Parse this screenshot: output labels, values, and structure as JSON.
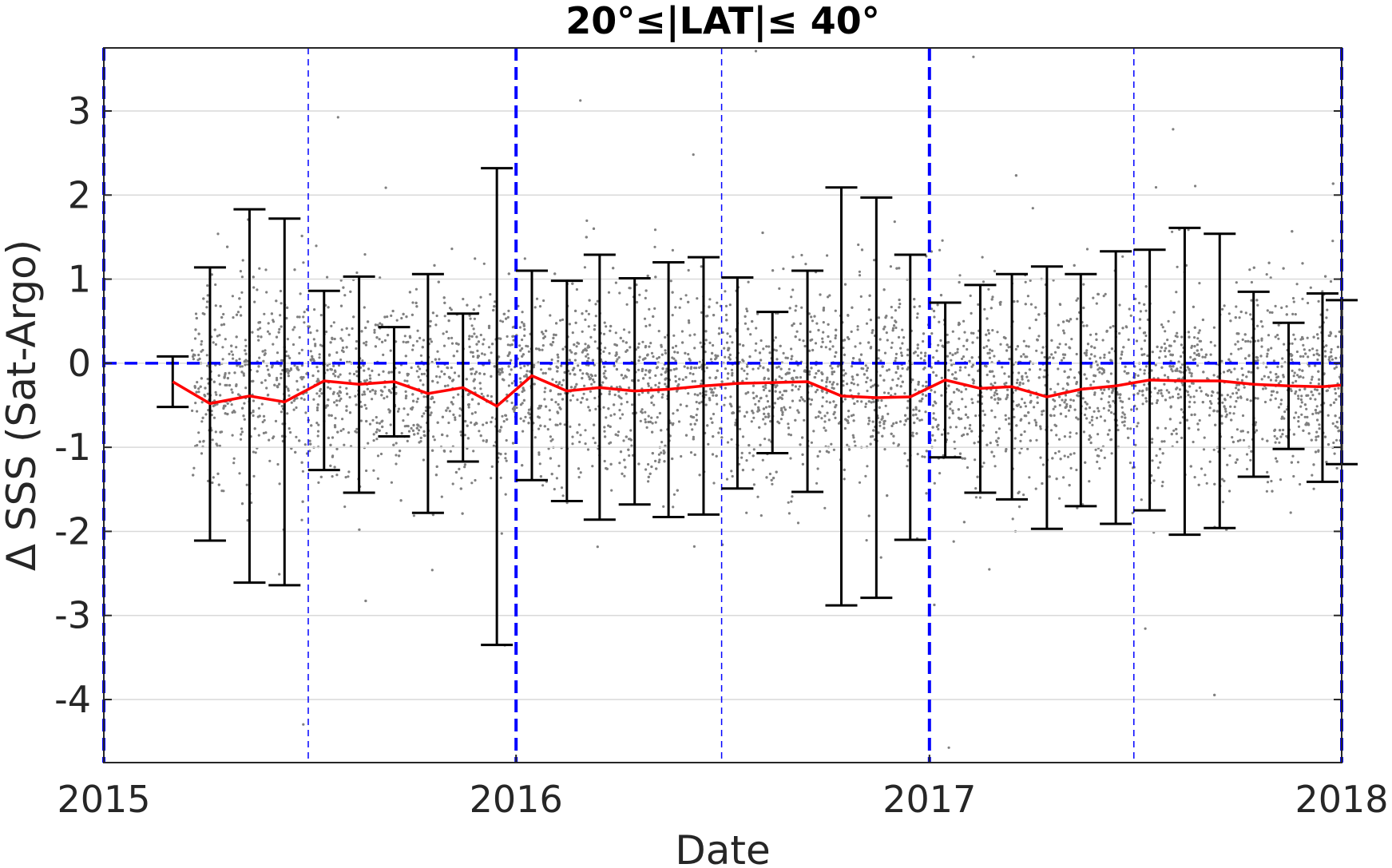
{
  "chart_data": {
    "type": "scatter",
    "title": "20°≤|LAT|≤ 40°",
    "xlabel": "Date",
    "ylabel": "Δ SSS (Sat-Argo)",
    "xlim": [
      "2015-01-01",
      "2018-01-01"
    ],
    "ylim": [
      -4.75,
      3.75
    ],
    "x_ticks": [
      "2015",
      "2016",
      "2017",
      "2018"
    ],
    "y_ticks": [
      3,
      2,
      1,
      0,
      -1,
      -2,
      -3,
      -4
    ],
    "y_tick_labels": [
      "3",
      "2",
      "1",
      "0",
      "-1",
      "-2",
      "-3",
      "-4"
    ],
    "grid": "horizontal",
    "reference_line": {
      "y": 0,
      "style": "dashed",
      "color": "#0000ff"
    },
    "vertical_lines": [
      {
        "date": "2015-01-01",
        "style": "thick-dashed"
      },
      {
        "date": "2015-07-01",
        "style": "thin-dashed"
      },
      {
        "date": "2016-01-01",
        "style": "thick-dashed"
      },
      {
        "date": "2016-07-01",
        "style": "thin-dashed"
      },
      {
        "date": "2017-01-01",
        "style": "thick-dashed"
      },
      {
        "date": "2017-07-01",
        "style": "thin-dashed"
      },
      {
        "date": "2018-01-01",
        "style": "thick-dashed"
      }
    ],
    "scatter_cloud": {
      "x_range": [
        "2015-03-20",
        "2018-01-01"
      ],
      "center": -0.25,
      "spread": 0.55,
      "color": "#808080"
    },
    "series": [
      {
        "color": "#ff0000",
        "points": [
          {
            "x": "2015-03-03",
            "mean": -0.22,
            "low": -0.52,
            "high": 0.08
          },
          {
            "x": "2015-04-05",
            "mean": -0.48,
            "low": -2.11,
            "high": 1.14
          },
          {
            "x": "2015-05-10",
            "mean": -0.39,
            "low": -2.61,
            "high": 1.83
          },
          {
            "x": "2015-06-10",
            "mean": -0.46,
            "low": -2.64,
            "high": 1.72
          },
          {
            "x": "2015-07-15",
            "mean": -0.21,
            "low": -1.27,
            "high": 0.86
          },
          {
            "x": "2015-08-15",
            "mean": -0.25,
            "low": -1.54,
            "high": 1.03
          },
          {
            "x": "2015-09-15",
            "mean": -0.22,
            "low": -0.87,
            "high": 0.43
          },
          {
            "x": "2015-10-15",
            "mean": -0.36,
            "low": -1.78,
            "high": 1.06
          },
          {
            "x": "2015-11-15",
            "mean": -0.29,
            "low": -1.17,
            "high": 0.59
          },
          {
            "x": "2015-12-15",
            "mean": -0.51,
            "low": -3.35,
            "high": 2.32
          },
          {
            "x": "2016-01-15",
            "mean": -0.15,
            "low": -1.39,
            "high": 1.1
          },
          {
            "x": "2016-02-15",
            "mean": -0.33,
            "low": -1.64,
            "high": 0.98
          },
          {
            "x": "2016-03-15",
            "mean": -0.29,
            "low": -1.86,
            "high": 1.29
          },
          {
            "x": "2016-04-15",
            "mean": -0.33,
            "low": -1.68,
            "high": 1.01
          },
          {
            "x": "2016-05-15",
            "mean": -0.31,
            "low": -1.83,
            "high": 1.2
          },
          {
            "x": "2016-06-15",
            "mean": -0.27,
            "low": -1.8,
            "high": 1.26
          },
          {
            "x": "2016-07-15",
            "mean": -0.24,
            "low": -1.49,
            "high": 1.02
          },
          {
            "x": "2016-08-15",
            "mean": -0.23,
            "low": -1.07,
            "high": 0.61
          },
          {
            "x": "2016-09-15",
            "mean": -0.22,
            "low": -1.53,
            "high": 1.1
          },
          {
            "x": "2016-10-15",
            "mean": -0.39,
            "low": -2.88,
            "high": 2.09
          },
          {
            "x": "2016-11-15",
            "mean": -0.41,
            "low": -2.79,
            "high": 1.97
          },
          {
            "x": "2016-12-15",
            "mean": -0.4,
            "low": -2.1,
            "high": 1.29
          },
          {
            "x": "2017-01-15",
            "mean": -0.2,
            "low": -1.12,
            "high": 0.72
          },
          {
            "x": "2017-02-15",
            "mean": -0.3,
            "low": -1.54,
            "high": 0.93
          },
          {
            "x": "2017-03-15",
            "mean": -0.28,
            "low": -1.62,
            "high": 1.06
          },
          {
            "x": "2017-04-15",
            "mean": -0.4,
            "low": -1.97,
            "high": 1.15
          },
          {
            "x": "2017-05-15",
            "mean": -0.31,
            "low": -1.7,
            "high": 1.06
          },
          {
            "x": "2017-06-15",
            "mean": -0.27,
            "low": -1.91,
            "high": 1.33
          },
          {
            "x": "2017-07-15",
            "mean": -0.2,
            "low": -1.75,
            "high": 1.35
          },
          {
            "x": "2017-08-15",
            "mean": -0.21,
            "low": -2.04,
            "high": 1.61
          },
          {
            "x": "2017-09-15",
            "mean": -0.21,
            "low": -1.96,
            "high": 1.54
          },
          {
            "x": "2017-10-15",
            "mean": -0.25,
            "low": -1.35,
            "high": 0.85
          },
          {
            "x": "2017-11-15",
            "mean": -0.27,
            "low": -1.02,
            "high": 0.48
          },
          {
            "x": "2017-12-15",
            "mean": -0.28,
            "low": -1.41,
            "high": 0.83
          },
          {
            "x": "2018-01-01",
            "mean": -0.26,
            "low": -1.2,
            "high": 0.75
          }
        ]
      }
    ]
  }
}
